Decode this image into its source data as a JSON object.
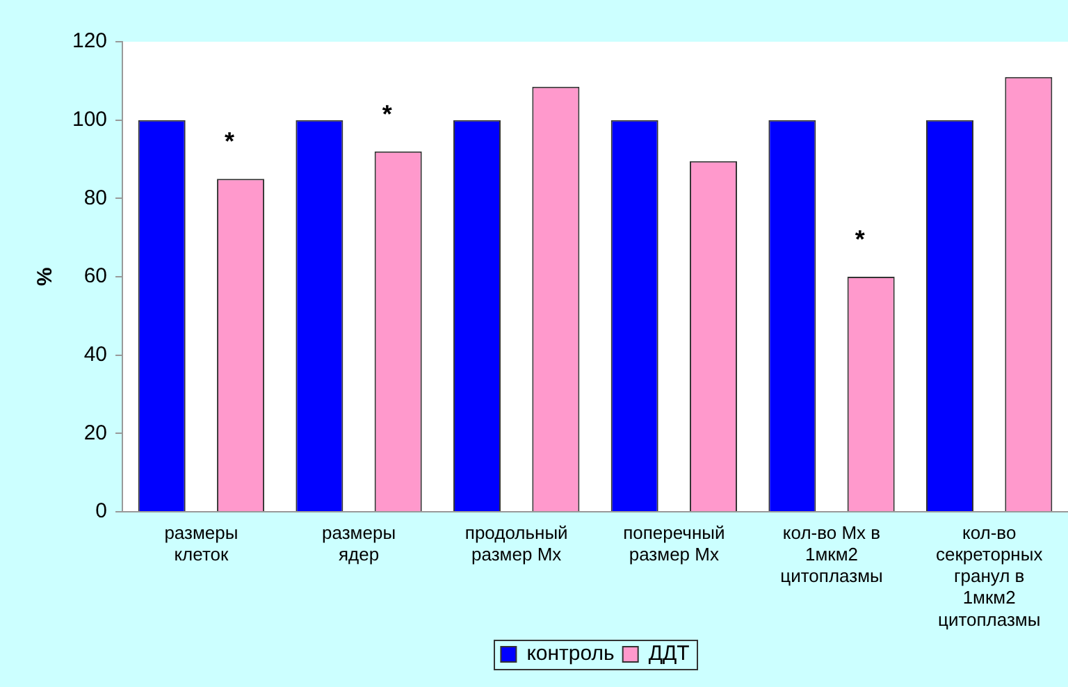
{
  "chart_data": {
    "type": "bar",
    "ylabel": "%",
    "categories": [
      "размеры клеток",
      "размеры ядер",
      "продольный размер Мх",
      "поперечный размер Мх",
      "кол-во Мх в 1мкм2 цитоплазмы",
      "кол-во секреторных гранул в 1мкм2 цитоплазмы"
    ],
    "series": [
      {
        "name": "контроль",
        "color": "#0000ff",
        "values": [
          100,
          100,
          100,
          100,
          100,
          100
        ]
      },
      {
        "name": "ДДТ",
        "color": "#ff99cc",
        "values": [
          85,
          92,
          108.5,
          89.5,
          60,
          111
        ],
        "value_labels": [
          "*",
          "*",
          null,
          null,
          "*",
          null
        ]
      }
    ],
    "ylim": [
      0,
      120
    ],
    "yticks": [
      0,
      20,
      40,
      60,
      80,
      100,
      120
    ],
    "grid": false,
    "legend": "bottom"
  }
}
